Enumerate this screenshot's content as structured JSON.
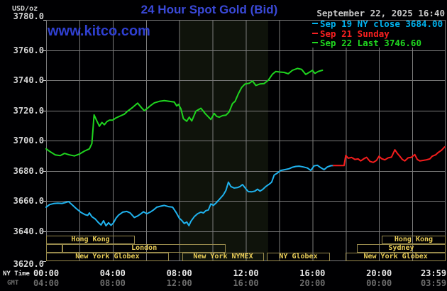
{
  "header": {
    "title": "24 Hour Spot Gold (Bid)",
    "watermark": "www.kitco.com",
    "unit": "USD/oz",
    "datetime": "September 22, 2025 16:40"
  },
  "legend": {
    "items": [
      {
        "label": "Sep 19 NY close 3684.00",
        "color": "#00b2ee"
      },
      {
        "label": "Sep 21 Sunday",
        "color": "#f82020"
      },
      {
        "label": "Sep 22 Last 3746.60",
        "color": "#20d820"
      }
    ]
  },
  "colors": {
    "title_blue": "#3a49d8",
    "watermark_blue": "#2f3fd0",
    "date_gray": "#c8c8c8",
    "grid_gray": "#7b7b7b",
    "band_olive": "#0f130b",
    "session_border": "#97894c",
    "session_text": "#e9cd58",
    "background": "#000002"
  },
  "x_axis": {
    "ny_label": "NY Time",
    "gmt_label": "GMT",
    "ny_ticks": [
      "00:00",
      "04:00",
      "08:00",
      "12:00",
      "16:00",
      "20:00",
      "23:59"
    ],
    "gmt_ticks": [
      "04:00",
      "08:00",
      "12:00",
      "16:00",
      "20:00",
      "00:00",
      "03:59"
    ]
  },
  "y_axis": {
    "tick_labels": [
      "3780.0",
      "3760.0",
      "3740.0",
      "3720.0",
      "3700.0",
      "3680.0",
      "3660.0",
      "3640.0",
      "3620.0"
    ]
  },
  "chart_data": {
    "type": "line",
    "title": "24 Hour Spot Gold (Bid)",
    "ylabel": "USD/oz",
    "ylim": [
      3620,
      3780
    ],
    "xlim_hours": [
      0,
      24
    ],
    "y_grid_step": 20,
    "x_grid_step_hours": 2,
    "grid": true,
    "legend_position": "top-right",
    "nymex_highlight_band_hours": [
      8.0,
      13.34
    ],
    "series": [
      {
        "name": "Sep 19 NY close 3684.00",
        "color": "#1fb2ee",
        "points": [
          [
            0,
            3655.8
          ],
          [
            0.2,
            3657.5
          ],
          [
            0.45,
            3658.2
          ],
          [
            0.7,
            3658.5
          ],
          [
            0.95,
            3658.3
          ],
          [
            1.2,
            3659
          ],
          [
            1.35,
            3659.5
          ],
          [
            1.55,
            3657.5
          ],
          [
            1.8,
            3655
          ],
          [
            2.1,
            3652.3
          ],
          [
            2.35,
            3650.8
          ],
          [
            2.5,
            3650.4
          ],
          [
            2.6,
            3652
          ],
          [
            2.75,
            3649.5
          ],
          [
            2.95,
            3648
          ],
          [
            3.15,
            3645.5
          ],
          [
            3.3,
            3644
          ],
          [
            3.45,
            3646.8
          ],
          [
            3.6,
            3643.5
          ],
          [
            3.75,
            3645.5
          ],
          [
            3.9,
            3643.8
          ],
          [
            4.05,
            3645.5
          ],
          [
            4.2,
            3648.5
          ],
          [
            4.35,
            3650.5
          ],
          [
            4.6,
            3652.5
          ],
          [
            4.85,
            3653
          ],
          [
            5.05,
            3652
          ],
          [
            5.3,
            3649
          ],
          [
            5.5,
            3650
          ],
          [
            5.7,
            3651.5
          ],
          [
            5.85,
            3652.8
          ],
          [
            6.05,
            3651.5
          ],
          [
            6.25,
            3652.5
          ],
          [
            6.45,
            3654
          ],
          [
            6.65,
            3655.8
          ],
          [
            6.9,
            3656.5
          ],
          [
            7.1,
            3657
          ],
          [
            7.35,
            3656.2
          ],
          [
            7.6,
            3655.8
          ],
          [
            7.8,
            3652.5
          ],
          [
            8,
            3648.5
          ],
          [
            8.15,
            3647
          ],
          [
            8.3,
            3645
          ],
          [
            8.45,
            3646
          ],
          [
            8.58,
            3643.6
          ],
          [
            8.7,
            3646.5
          ],
          [
            8.9,
            3649.5
          ],
          [
            9.1,
            3651.5
          ],
          [
            9.3,
            3652.5
          ],
          [
            9.45,
            3652
          ],
          [
            9.6,
            3653.5
          ],
          [
            9.75,
            3654
          ],
          [
            9.9,
            3658
          ],
          [
            10.05,
            3657
          ],
          [
            10.25,
            3659
          ],
          [
            10.45,
            3661.5
          ],
          [
            10.65,
            3664
          ],
          [
            10.8,
            3666.9
          ],
          [
            10.95,
            3672.4
          ],
          [
            11.1,
            3669.5
          ],
          [
            11.3,
            3668.5
          ],
          [
            11.5,
            3668.8
          ],
          [
            11.65,
            3669.5
          ],
          [
            11.8,
            3670.8
          ],
          [
            12,
            3668
          ],
          [
            12.15,
            3666.1
          ],
          [
            12.35,
            3666
          ],
          [
            12.55,
            3666.5
          ],
          [
            12.7,
            3667.7
          ],
          [
            12.85,
            3666.5
          ],
          [
            13,
            3667.5
          ],
          [
            13.2,
            3669.5
          ],
          [
            13.4,
            3671
          ],
          [
            13.55,
            3672.4
          ],
          [
            13.7,
            3677.1
          ],
          [
            13.9,
            3678.5
          ],
          [
            14.1,
            3680.2
          ],
          [
            14.35,
            3680.7
          ],
          [
            14.6,
            3681.3
          ],
          [
            14.8,
            3682.3
          ],
          [
            15,
            3682.8
          ],
          [
            15.2,
            3683
          ],
          [
            15.45,
            3682.5
          ],
          [
            15.7,
            3681.8
          ],
          [
            15.9,
            3680.2
          ],
          [
            16.1,
            3683.2
          ],
          [
            16.3,
            3683.6
          ],
          [
            16.5,
            3682
          ],
          [
            16.7,
            3680.7
          ],
          [
            16.9,
            3682.5
          ],
          [
            17.1,
            3683.3
          ],
          [
            17.25,
            3683.4
          ]
        ]
      },
      {
        "name": "Sep 21 Sunday",
        "color": "#f51d1d",
        "points": [
          [
            17.25,
            3683.4
          ],
          [
            17.9,
            3683.4
          ],
          [
            18,
            3690.1
          ],
          [
            18.15,
            3688.3
          ],
          [
            18.35,
            3688.8
          ],
          [
            18.55,
            3687.5
          ],
          [
            18.75,
            3687.8
          ],
          [
            18.9,
            3686.5
          ],
          [
            19.1,
            3688
          ],
          [
            19.25,
            3688.9
          ],
          [
            19.45,
            3686.2
          ],
          [
            19.65,
            3685.5
          ],
          [
            19.85,
            3686.8
          ],
          [
            20,
            3689.6
          ],
          [
            20.15,
            3688
          ],
          [
            20.35,
            3687.2
          ],
          [
            20.55,
            3688.5
          ],
          [
            20.75,
            3689
          ],
          [
            20.95,
            3693.9
          ],
          [
            21.1,
            3691.5
          ],
          [
            21.25,
            3689.6
          ],
          [
            21.4,
            3687.5
          ],
          [
            21.55,
            3686.5
          ],
          [
            21.75,
            3688.5
          ],
          [
            21.95,
            3688.9
          ],
          [
            22.15,
            3690.7
          ],
          [
            22.3,
            3687.5
          ],
          [
            22.45,
            3686.5
          ],
          [
            22.65,
            3686.8
          ],
          [
            22.85,
            3687.2
          ],
          [
            23.05,
            3687.8
          ],
          [
            23.2,
            3689.6
          ],
          [
            23.4,
            3690.5
          ],
          [
            23.55,
            3692
          ],
          [
            23.75,
            3693.5
          ],
          [
            23.95,
            3695.8
          ]
        ]
      },
      {
        "name": "Sep 22 Last 3746.60",
        "color": "#1fd41f",
        "points": [
          [
            0,
            3694.5
          ],
          [
            0.25,
            3692.5
          ],
          [
            0.55,
            3690.5
          ],
          [
            0.85,
            3690
          ],
          [
            1.1,
            3691.5
          ],
          [
            1.4,
            3690.5
          ],
          [
            1.7,
            3689.8
          ],
          [
            2,
            3691
          ],
          [
            2.3,
            3693
          ],
          [
            2.6,
            3694.5
          ],
          [
            2.75,
            3698
          ],
          [
            2.88,
            3717
          ],
          [
            3.05,
            3713
          ],
          [
            3.2,
            3709.5
          ],
          [
            3.35,
            3712
          ],
          [
            3.5,
            3710.5
          ],
          [
            3.65,
            3712.5
          ],
          [
            3.8,
            3713.5
          ],
          [
            4,
            3713.5
          ],
          [
            4.2,
            3715
          ],
          [
            4.5,
            3716.5
          ],
          [
            4.7,
            3717.5
          ],
          [
            4.9,
            3719.5
          ],
          [
            5.2,
            3722
          ],
          [
            5.5,
            3724.8
          ],
          [
            5.75,
            3721.5
          ],
          [
            5.9,
            3719.8
          ],
          [
            6.1,
            3721.5
          ],
          [
            6.3,
            3723.4
          ],
          [
            6.5,
            3725
          ],
          [
            6.8,
            3726
          ],
          [
            7.1,
            3726.5
          ],
          [
            7.4,
            3726
          ],
          [
            7.7,
            3725.5
          ],
          [
            7.85,
            3722.9
          ],
          [
            7.95,
            3724
          ],
          [
            8.1,
            3721
          ],
          [
            8.25,
            3714.5
          ],
          [
            8.45,
            3712.8
          ],
          [
            8.6,
            3715.5
          ],
          [
            8.75,
            3713
          ],
          [
            9,
            3719.5
          ],
          [
            9.3,
            3721.4
          ],
          [
            9.55,
            3718
          ],
          [
            9.7,
            3716.3
          ],
          [
            9.9,
            3714
          ],
          [
            10.1,
            3718
          ],
          [
            10.25,
            3716
          ],
          [
            10.4,
            3715.5
          ],
          [
            10.6,
            3716.5
          ],
          [
            10.8,
            3716.8
          ],
          [
            11,
            3719
          ],
          [
            11.2,
            3724.5
          ],
          [
            11.35,
            3726
          ],
          [
            11.55,
            3731
          ],
          [
            11.75,
            3735.2
          ],
          [
            11.95,
            3737.5
          ],
          [
            12.2,
            3738
          ],
          [
            12.4,
            3739.5
          ],
          [
            12.6,
            3736.5
          ],
          [
            12.85,
            3737.5
          ],
          [
            13.1,
            3737.8
          ],
          [
            13.35,
            3740
          ],
          [
            13.6,
            3744
          ],
          [
            13.8,
            3745.8
          ],
          [
            14.05,
            3745.4
          ],
          [
            14.3,
            3745.2
          ],
          [
            14.55,
            3744.3
          ],
          [
            14.8,
            3746.6
          ],
          [
            15.1,
            3747.8
          ],
          [
            15.35,
            3747.2
          ],
          [
            15.6,
            3743.8
          ],
          [
            15.85,
            3745.5
          ],
          [
            16,
            3746.5
          ],
          [
            16.15,
            3744.5
          ],
          [
            16.35,
            3745.8
          ],
          [
            16.6,
            3746.6
          ]
        ]
      }
    ],
    "sessions": [
      {
        "row": 1,
        "label": "Hong Kong",
        "from": 0,
        "to": 5.33
      },
      {
        "row": 1,
        "label": "Hong Kong",
        "from": 20.16,
        "to": 24
      },
      {
        "row": 2,
        "label": "",
        "from": 0,
        "to": 1.0
      },
      {
        "row": 2,
        "label": "London",
        "from": 1.0,
        "to": 10.78
      },
      {
        "row": 2,
        "label": "Sydney",
        "from": 18.67,
        "to": 24
      },
      {
        "row": 3,
        "label": "New York Globex",
        "from": 0,
        "to": 7.37
      },
      {
        "row": 3,
        "label": "New York NYMEX",
        "from": 8.17,
        "to": 13.1
      },
      {
        "row": 3,
        "label": "NY Globex",
        "from": 13.26,
        "to": 17.05
      },
      {
        "row": 3,
        "label": "New York Globex",
        "from": 18.0,
        "to": 24
      }
    ]
  }
}
